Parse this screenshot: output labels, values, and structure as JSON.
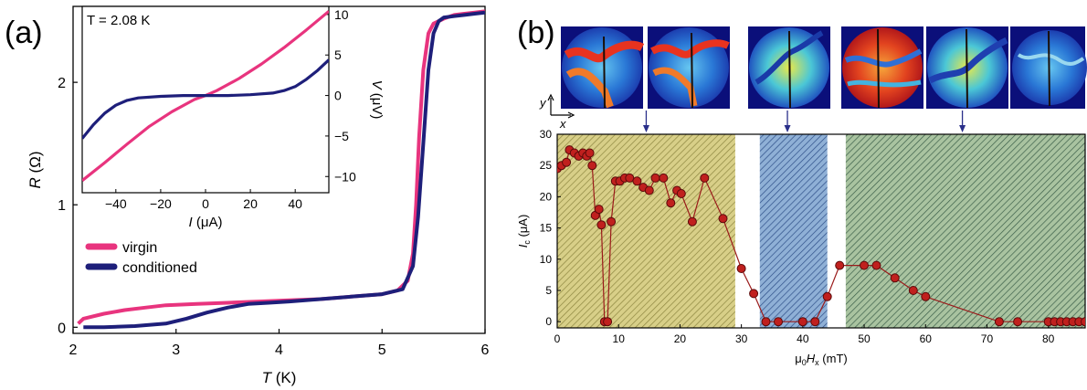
{
  "panel_a": {
    "label": "(a)"
  },
  "panel_b": {
    "label": "(b)"
  },
  "chart_data": [
    {
      "id": "a_main",
      "type": "line",
      "xlabel_italic": "T",
      "xlabel_unit": " (K)",
      "ylabel_italic": "R",
      "ylabel_unit": " (Ω)",
      "xlim": [
        2,
        6
      ],
      "ylim": [
        -0.05,
        2.62
      ],
      "xticks": [
        2,
        3,
        4,
        5,
        6
      ],
      "yticks": [
        0,
        1,
        2
      ],
      "legend_position": "bottom-left",
      "series": [
        {
          "name": "virgin",
          "color": "#e8347e",
          "x": [
            2.05,
            2.1,
            2.3,
            2.5,
            2.7,
            2.9,
            3.2,
            3.5,
            3.8,
            4.1,
            4.4,
            4.7,
            5.0,
            5.15,
            5.25,
            5.3,
            5.33,
            5.36,
            5.4,
            5.45,
            5.5,
            5.6,
            5.7,
            5.8,
            5.9,
            6.0
          ],
          "y": [
            0.03,
            0.07,
            0.11,
            0.14,
            0.16,
            0.18,
            0.19,
            0.2,
            0.21,
            0.22,
            0.23,
            0.25,
            0.27,
            0.3,
            0.38,
            0.6,
            1.0,
            1.55,
            2.1,
            2.4,
            2.48,
            2.52,
            2.55,
            2.56,
            2.57,
            2.58
          ]
        },
        {
          "name": "conditioned",
          "color": "#1e1f7a",
          "x": [
            2.1,
            2.3,
            2.6,
            2.9,
            3.1,
            3.3,
            3.5,
            3.7,
            3.9,
            4.1,
            4.4,
            4.7,
            5.0,
            5.2,
            5.3,
            5.35,
            5.4,
            5.45,
            5.5,
            5.55,
            5.6,
            5.7,
            5.8,
            5.9,
            6.0
          ],
          "y": [
            0.0,
            0.0,
            0.01,
            0.03,
            0.07,
            0.12,
            0.16,
            0.19,
            0.2,
            0.21,
            0.23,
            0.25,
            0.27,
            0.31,
            0.5,
            0.9,
            1.5,
            2.1,
            2.4,
            2.5,
            2.53,
            2.54,
            2.55,
            2.56,
            2.57
          ]
        }
      ]
    },
    {
      "id": "a_inset",
      "type": "line",
      "annotation": "T = 2.08 K",
      "xlabel_italic": "I",
      "xlabel_unit": " (μA)",
      "ylabel_italic": "V",
      "ylabel_unit": " (μV)",
      "xlim": [
        -55,
        55
      ],
      "ylim": [
        -12,
        11
      ],
      "xticks": [
        -40,
        -20,
        0,
        20,
        40
      ],
      "yticks": [
        -10,
        -5,
        0,
        5,
        10
      ],
      "series": [
        {
          "name": "virgin",
          "color": "#e8347e",
          "x": [
            -55,
            -45,
            -35,
            -25,
            -15,
            -5,
            0,
            5,
            15,
            25,
            35,
            45,
            55
          ],
          "y": [
            -10.5,
            -8.3,
            -6.0,
            -3.8,
            -2.0,
            -0.5,
            0.0,
            0.6,
            2.1,
            3.9,
            5.9,
            8.1,
            10.4
          ]
        },
        {
          "name": "conditioned",
          "color": "#1e1f7a",
          "x": [
            -55,
            -50,
            -45,
            -40,
            -35,
            -30,
            -20,
            -10,
            0,
            10,
            20,
            30,
            35,
            40,
            45,
            50,
            55
          ],
          "y": [
            -5.3,
            -3.6,
            -2.2,
            -1.2,
            -0.6,
            -0.3,
            -0.1,
            0.0,
            0.0,
            0.0,
            0.1,
            0.3,
            0.6,
            1.1,
            2.0,
            3.1,
            4.4
          ]
        }
      ]
    },
    {
      "id": "b_main",
      "type": "scatter",
      "xlabel": "μ0Hx (mT)",
      "ylabel": "Ic (μA)",
      "xlim": [
        0,
        86
      ],
      "ylim": [
        -1,
        30
      ],
      "xticks": [
        0,
        10,
        20,
        30,
        40,
        50,
        60,
        70,
        80
      ],
      "yticks": [
        0,
        5,
        10,
        15,
        20,
        25,
        30
      ],
      "regions": [
        {
          "x_start": 0,
          "x_end": 29,
          "color": "#b7a94a"
        },
        {
          "x_start": 33,
          "x_end": 44,
          "color": "#3e6ea8"
        },
        {
          "x_start": 47,
          "x_end": 86,
          "color": "#4f7a5c"
        }
      ],
      "series": [
        {
          "name": "",
          "color": "#9a1a1a",
          "x": [
            0,
            0.7,
            1.5,
            2,
            2.8,
            3.5,
            4.2,
            4.8,
            5.3,
            5.7,
            6.2,
            6.8,
            7.2,
            7.7,
            8.2,
            8.8,
            9.5,
            10.2,
            11,
            11.8,
            13,
            14,
            15,
            16,
            17.3,
            18.5,
            19.5,
            20.2,
            22,
            24,
            27,
            30,
            32,
            34,
            36,
            40,
            42,
            44,
            46,
            50,
            52,
            55,
            58,
            60,
            72,
            75,
            80,
            81,
            82,
            83,
            84,
            85,
            86
          ],
          "y": [
            24.5,
            25,
            25.5,
            27.5,
            27,
            26.5,
            27,
            26.5,
            27,
            25,
            17,
            18,
            15.5,
            0,
            0,
            16,
            22.5,
            22.5,
            23,
            23,
            22.5,
            21.5,
            21,
            23,
            23,
            19,
            21,
            20.5,
            16,
            23,
            16.5,
            8.5,
            4.5,
            0,
            0,
            0,
            0,
            4,
            9,
            9,
            9,
            7,
            5,
            4,
            0,
            0,
            0,
            0,
            0,
            0,
            0,
            0,
            0
          ]
        }
      ],
      "arrows_at_x": [
        14.5,
        37.5,
        66
      ]
    }
  ]
}
